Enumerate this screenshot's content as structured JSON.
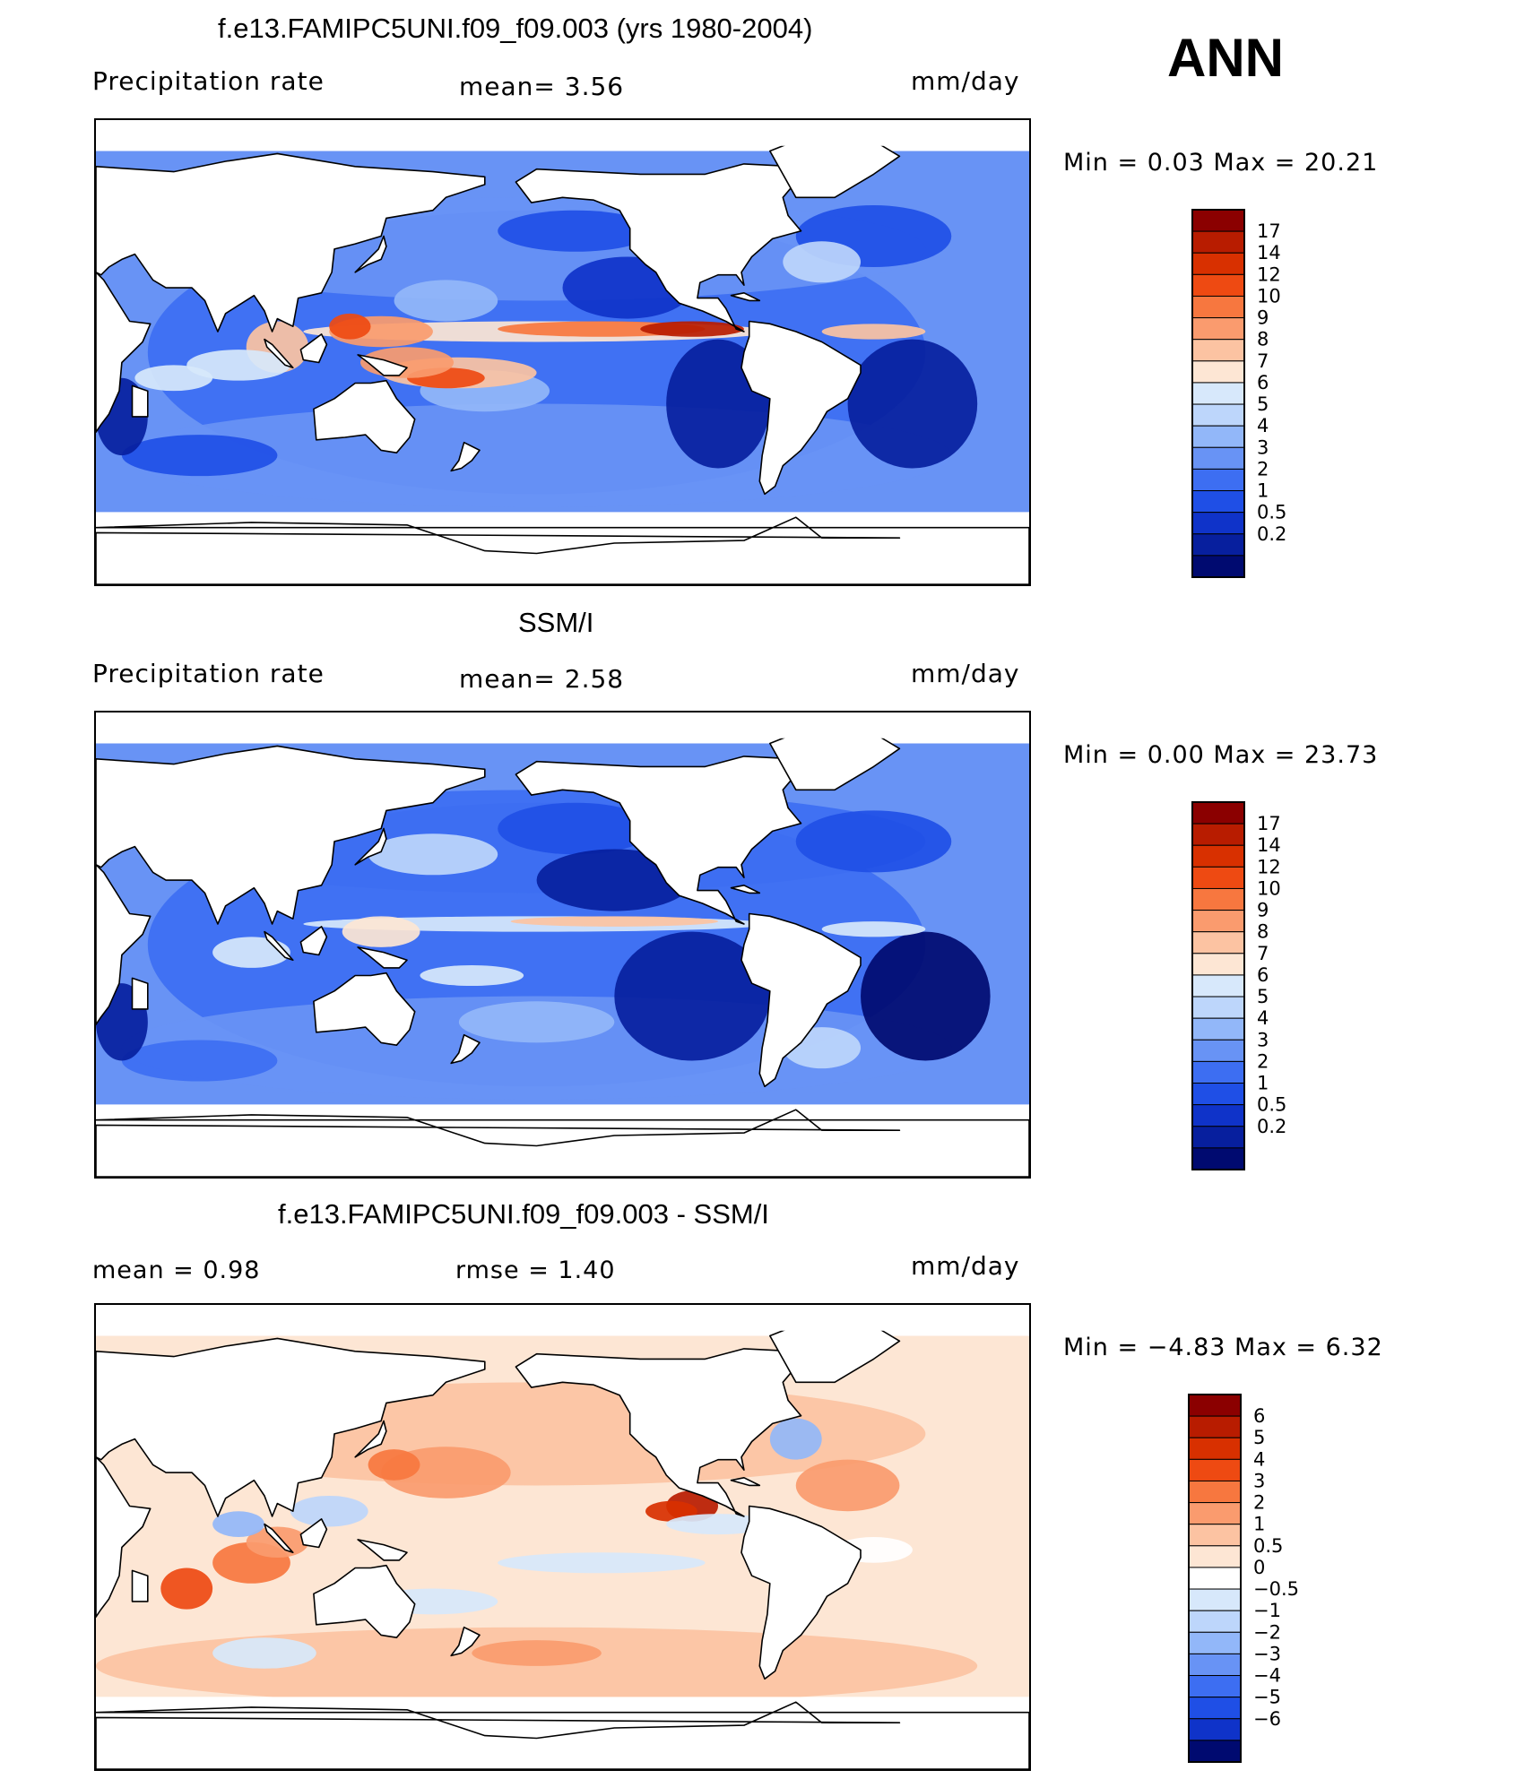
{
  "season": "ANN",
  "panels": [
    {
      "title": "f.e13.FAMIPC5UNI.f09_f09.003 (yrs 1980-2004)",
      "left_label": "Precipitation  rate",
      "mid_label": "mean=    3.56",
      "units": "mm/day",
      "minmax_label": "Min  =     0.03  Max  =     20.21",
      "levels": [
        "17",
        "14",
        "12",
        "10",
        "9",
        "8",
        "7",
        "6",
        "5",
        "4",
        "3",
        "2",
        "1",
        "0.5",
        "0.2"
      ],
      "colors": [
        "#8b0000",
        "#b81c00",
        "#d83000",
        "#ee4a12",
        "#f7773f",
        "#fa9b6e",
        "#fcc3a2",
        "#fde6d4",
        "#d7e8fb",
        "#bdd6fb",
        "#92b7f9",
        "#6893f5",
        "#3d6ef2",
        "#1f4fe6",
        "#0f33c9",
        "#071f9e",
        "#000a70"
      ],
      "kind": "model"
    },
    {
      "title": "SSM/I",
      "left_label": "Precipitation  rate",
      "mid_label": "mean=    2.58",
      "units": "mm/day",
      "minmax_label": "Min  =     0.00  Max  =     23.73",
      "levels": [
        "17",
        "14",
        "12",
        "10",
        "9",
        "8",
        "7",
        "6",
        "5",
        "4",
        "3",
        "2",
        "1",
        "0.5",
        "0.2"
      ],
      "colors": [
        "#8b0000",
        "#b81c00",
        "#d83000",
        "#ee4a12",
        "#f7773f",
        "#fa9b6e",
        "#fcc3a2",
        "#fde6d4",
        "#d7e8fb",
        "#bdd6fb",
        "#92b7f9",
        "#6893f5",
        "#3d6ef2",
        "#1f4fe6",
        "#0f33c9",
        "#071f9e",
        "#000a70"
      ],
      "kind": "obs"
    },
    {
      "title": "f.e13.FAMIPC5UNI.f09_f09.003 - SSM/I",
      "left_label": "mean  =     0.98",
      "mid_label": "rmse  =     1.40",
      "units": "mm/day",
      "minmax_label": "Min  =   −4.83  Max  =      6.32",
      "levels": [
        "6",
        "5",
        "4",
        "3",
        "2",
        "1",
        "0.5",
        "0",
        "−0.5",
        "−1",
        "−2",
        "−3",
        "−4",
        "−5",
        "−6"
      ],
      "colors": [
        "#8b0000",
        "#b81c00",
        "#d83000",
        "#ee4a12",
        "#f7773f",
        "#fa9b6e",
        "#fcc3a2",
        "#fde6d4",
        "#ffffff",
        "#d7e8fb",
        "#bdd6fb",
        "#92b7f9",
        "#6893f5",
        "#3d6ef2",
        "#1f4fe6",
        "#0f33c9",
        "#000a70"
      ],
      "kind": "diff"
    }
  ]
}
